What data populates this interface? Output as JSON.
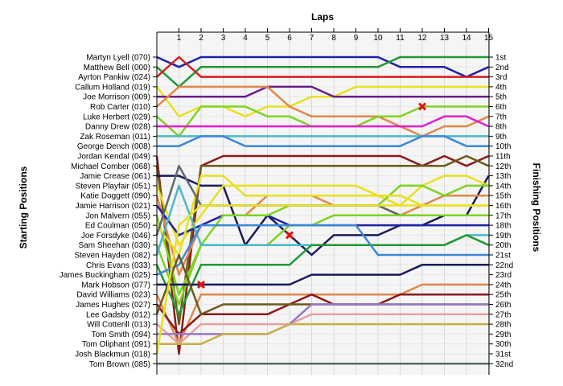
{
  "chart_data": {
    "type": "line",
    "title": "",
    "xlabel": "Laps",
    "ylabel_left": "Starting Positions",
    "ylabel_right": "Finishing Positions",
    "laps": [
      1,
      2,
      3,
      4,
      5,
      6,
      7,
      8,
      9,
      10,
      11,
      12,
      13,
      14,
      15
    ],
    "ylim": [
      1,
      32
    ],
    "grid": true,
    "starting_positions": [
      "Martyn Lyell (070)",
      "Matthew Bell (000)",
      "Ayrton Pankiw (024)",
      "Callum Holland (019)",
      "Joe Morrison (009)",
      "Rob Carter (010)",
      "Luke Herbert (029)",
      "Danny Drew (028)",
      "Zak Roseman (011)",
      "George Dench (008)",
      "Jordan Kendal (049)",
      "Michael Comber (068)",
      "Jamie Crease (061)",
      "Steven Playfair (051)",
      "Katie Doggett (090)",
      "Jamie Harrison (021)",
      "Jon Malvern (055)",
      "Ed Coulman (050)",
      "Joe Forsdyke (046)",
      "Sam Sheehan (030)",
      "Steven Hayden (082)",
      "Chris Evans (033)",
      "James Buckingham (025)",
      "Mark Hobson (077)",
      "David Williams (023)",
      "James Hughes (027)",
      "Lee Gadsby (012)",
      "Will Cotterill (013)",
      "Tom Smith (094)",
      "Tom Oliphant (091)",
      "Josh Blackmun (018)",
      "Tom Brown (085)"
    ],
    "finishing_positions": [
      "1st",
      "2nd",
      "3rd",
      "4th",
      "5th",
      "6th",
      "7th",
      "8th",
      "9th",
      "10th",
      "11th",
      "12th",
      "13th",
      "14th",
      "15th",
      "16th",
      "17th",
      "18th",
      "19th",
      "20th",
      "21st",
      "22nd",
      "23rd",
      "24th",
      "25th",
      "26th",
      "27th",
      "28th",
      "29th",
      "30th",
      "31st",
      "32nd"
    ],
    "series": [
      {
        "color": "#1f22a8",
        "values": [
          1,
          2,
          1,
          1,
          1,
          1,
          1,
          1,
          1,
          1,
          1,
          2,
          2,
          2,
          3,
          2
        ]
      },
      {
        "color": "#1f9a33",
        "values": [
          2,
          4,
          2,
          2,
          2,
          2,
          2,
          2,
          2,
          2,
          2,
          1,
          1,
          1,
          1,
          1
        ]
      },
      {
        "color": "#d41e1e",
        "values": [
          3,
          1,
          3,
          3,
          3,
          3,
          3,
          3,
          3,
          3,
          3,
          3,
          3,
          3,
          3,
          3
        ]
      },
      {
        "color": "#e8e020",
        "values": [
          4,
          7,
          6,
          6,
          7,
          6,
          6,
          5,
          5,
          4,
          4,
          4,
          4,
          4,
          4,
          4
        ]
      },
      {
        "color": "#6a1e8a",
        "values": [
          5,
          5,
          5,
          5,
          5,
          4,
          4,
          4,
          5,
          5,
          5,
          5,
          5,
          5,
          5,
          5
        ]
      },
      {
        "color": "#e0884a",
        "values": [
          6,
          4,
          4,
          4,
          4,
          4,
          6,
          7,
          7,
          7,
          7,
          8,
          9,
          8,
          8,
          7
        ]
      },
      {
        "color": "#7ed321",
        "values": [
          7,
          9,
          6,
          6,
          6,
          7,
          7,
          8,
          8,
          8,
          7,
          7,
          6,
          6,
          6,
          6
        ]
      },
      {
        "color": "#e020d0",
        "values": [
          8,
          8,
          8,
          8,
          8,
          8,
          8,
          8,
          8,
          8,
          8,
          8,
          8,
          7,
          7,
          8
        ]
      },
      {
        "color": "#4ab8c8",
        "values": [
          9,
          9,
          9,
          9,
          9,
          9,
          9,
          9,
          9,
          9,
          9,
          9,
          9,
          9,
          9,
          9
        ]
      },
      {
        "color": "#3a88d8",
        "values": [
          10,
          10,
          9,
          9,
          10,
          10,
          10,
          10,
          10,
          10,
          10,
          10,
          9,
          9,
          10,
          10
        ]
      },
      {
        "color": "#8a1a1a",
        "values": [
          11,
          31,
          12,
          11,
          11,
          11,
          11,
          11,
          11,
          11,
          11,
          11,
          12,
          11,
          12,
          11
        ]
      },
      {
        "color": "#6b5a1a",
        "values": [
          12,
          28,
          12,
          12,
          12,
          12,
          12,
          12,
          12,
          12,
          12,
          12,
          12,
          12,
          11,
          12
        ]
      },
      {
        "color": "#1a1a5a",
        "values": [
          13,
          13,
          14,
          14,
          20,
          17,
          19,
          21,
          19,
          19,
          19,
          18,
          18,
          17,
          17,
          13
        ]
      },
      {
        "color": "#e8e020",
        "values": [
          14,
          20,
          17,
          14,
          14,
          14,
          14,
          14,
          14,
          14,
          15,
          16,
          14,
          13,
          13,
          14
        ]
      },
      {
        "color": "#e0884a",
        "values": [
          15,
          23,
          18,
          17,
          17,
          15,
          15,
          15,
          16,
          16,
          16,
          17,
          16,
          15,
          15,
          15
        ]
      },
      {
        "color": "#1f22a8",
        "values": [
          16,
          19,
          18,
          17,
          17,
          17,
          18,
          18,
          18,
          18,
          18,
          18,
          18,
          18,
          18,
          18
        ]
      },
      {
        "color": "#7ed321",
        "values": [
          17,
          25,
          20,
          17,
          17,
          17,
          16,
          16,
          16,
          16,
          16,
          14,
          14,
          15,
          14,
          14
        ]
      },
      {
        "color": "#e8e020",
        "values": [
          18,
          21,
          13,
          13,
          15,
          15,
          15,
          15,
          15,
          15,
          15,
          15,
          16,
          16,
          16,
          16
        ]
      },
      {
        "color": "#5a6a6a",
        "values": [
          19,
          12,
          16,
          16,
          16,
          16,
          16,
          16,
          16,
          16,
          16,
          17,
          17,
          17,
          17,
          17
        ]
      },
      {
        "color": "#7ed321",
        "values": [
          20,
          26,
          20,
          20,
          20,
          20,
          18,
          18,
          17,
          17,
          17,
          17,
          17,
          17,
          17,
          17
        ]
      },
      {
        "color": "#4ab8c8",
        "values": [
          21,
          14,
          20,
          20,
          20,
          20,
          20,
          20,
          20,
          20,
          20,
          20,
          20,
          20,
          19,
          19
        ]
      },
      {
        "color": "#1f9a33",
        "values": [
          22,
          27,
          22,
          22,
          22,
          22,
          22,
          20,
          20,
          20,
          20,
          20,
          20,
          20,
          19,
          20
        ]
      },
      {
        "color": "#3a88d8",
        "values": [
          23,
          22,
          18,
          18,
          18,
          18,
          18,
          18,
          18,
          18,
          21,
          21,
          21,
          21,
          21,
          21
        ]
      },
      {
        "color": "#1a1a5a",
        "values": [
          24,
          24,
          24,
          24,
          24,
          24,
          24,
          23,
          23,
          23,
          23,
          23,
          22,
          22,
          22,
          22
        ]
      },
      {
        "color": "#e0884a",
        "values": [
          25,
          30,
          25,
          25,
          25,
          25,
          25,
          25,
          25,
          25,
          25,
          25,
          24,
          24,
          24,
          24
        ]
      },
      {
        "color": "#8a1a1a",
        "values": [
          26,
          29,
          27,
          27,
          27,
          27,
          26,
          25,
          26,
          26,
          26,
          25,
          25,
          25,
          25,
          25
        ]
      },
      {
        "color": "#6b5a1a",
        "values": [
          27,
          21,
          27,
          26,
          26,
          26,
          26,
          26,
          26,
          26,
          26,
          26,
          26,
          26,
          26,
          26
        ]
      },
      {
        "color": "#e8a0a0",
        "values": [
          28,
          30,
          28,
          28,
          28,
          28,
          28,
          27,
          27,
          27,
          27,
          27,
          27,
          27,
          27,
          27
        ]
      },
      {
        "color": "#9878c8",
        "values": [
          29,
          29,
          29,
          29,
          29,
          29,
          28,
          26,
          26,
          26,
          26,
          26,
          26,
          26,
          26,
          26
        ]
      },
      {
        "color": "#c8b048",
        "values": [
          30,
          30,
          30,
          29,
          29,
          29,
          28,
          28,
          28,
          28,
          28,
          28,
          28,
          28,
          28,
          28
        ]
      },
      {
        "color": "#e8e020",
        "values": [
          31,
          18,
          16,
          16,
          16,
          16,
          16,
          16,
          16,
          16,
          16,
          16,
          16,
          16,
          16,
          16
        ]
      },
      {
        "color": "#5a6a6a",
        "values": [
          32,
          32,
          32,
          32,
          32,
          32,
          32,
          32,
          32,
          32,
          32,
          32,
          32,
          32,
          32,
          32
        ]
      }
    ],
    "retirements": [
      {
        "lap": 2,
        "position": 24
      },
      {
        "lap": 6,
        "position": 19
      },
      {
        "lap": 12,
        "position": 6
      }
    ]
  }
}
